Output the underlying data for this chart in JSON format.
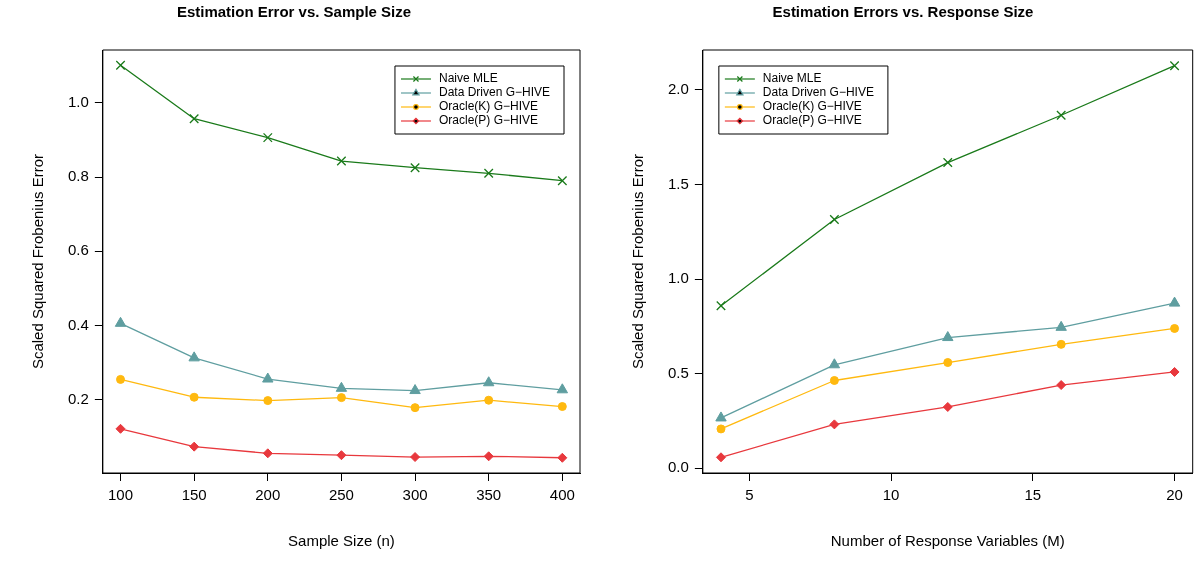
{
  "chart_data": [
    {
      "type": "line",
      "title": "Estimation Error vs. Sample Size",
      "xlabel": "Sample Size (n)",
      "ylabel": "Scaled Squared Frobenius Error",
      "x": [
        100,
        150,
        200,
        250,
        300,
        350,
        400
      ],
      "xlim": [
        88,
        412
      ],
      "xticks": [
        100,
        150,
        200,
        250,
        300,
        350,
        400
      ],
      "ylim": [
        0.003,
        1.142
      ],
      "yticks": [
        0.2,
        0.4,
        0.6,
        0.8,
        {
          "value": 1.0,
          "label": "1.0"
        }
      ],
      "grid": false,
      "legend": "top right",
      "line_style": "solid",
      "series": [
        {
          "name": "Naive MLE",
          "color": "#1a7a1a",
          "marker": "cross",
          "values": [
            1.101,
            0.957,
            0.906,
            0.843,
            0.825,
            0.81,
            0.79
          ]
        },
        {
          "name": "Data Driven G−HIVE",
          "color": "#5f9ea0",
          "marker": "triangle",
          "values": [
            0.406,
            0.313,
            0.256,
            0.231,
            0.225,
            0.246,
            0.227
          ]
        },
        {
          "name": "Oracle(K) G−HIVE",
          "color": "#ffb90f",
          "marker": "circle",
          "values": [
            0.255,
            0.207,
            0.198,
            0.206,
            0.179,
            0.199,
            0.182
          ]
        },
        {
          "name": "Oracle(P) G−HIVE",
          "color": "#e8383d",
          "marker": "diamond",
          "values": [
            0.122,
            0.074,
            0.056,
            0.051,
            0.046,
            0.048,
            0.044
          ]
        }
      ]
    },
    {
      "type": "line",
      "title": "Estimation Errors vs. Response Size",
      "xlabel": "Number of Response Variables (M)",
      "ylabel": "Scaled Squared Frobenius Error",
      "x": [
        4,
        8,
        12,
        16,
        20
      ],
      "xlim": [
        3.36,
        20.64
      ],
      "xticks": [
        5,
        10,
        15,
        20
      ],
      "ylim": [
        -0.025,
        2.211
      ],
      "yticks": [
        {
          "value": 0,
          "label": "0.0"
        },
        0.5,
        {
          "value": 1,
          "label": "1.0"
        },
        1.5,
        {
          "value": 2,
          "label": "2.0"
        }
      ],
      "grid": false,
      "legend": "top left",
      "line_style": "solid",
      "series": [
        {
          "name": "Naive MLE",
          "color": "#1a7a1a",
          "marker": "cross",
          "values": [
            0.859,
            1.315,
            1.616,
            1.866,
            2.128
          ]
        },
        {
          "name": "Data Driven G−HIVE",
          "color": "#5f9ea0",
          "marker": "triangle",
          "values": [
            0.266,
            0.547,
            0.691,
            0.745,
            0.873
          ]
        },
        {
          "name": "Oracle(K) G−HIVE",
          "color": "#ffb90f",
          "marker": "circle",
          "values": [
            0.208,
            0.464,
            0.559,
            0.655,
            0.739
          ]
        },
        {
          "name": "Oracle(P) G−HIVE",
          "color": "#e8383d",
          "marker": "diamond",
          "values": [
            0.058,
            0.232,
            0.324,
            0.44,
            0.509
          ]
        }
      ]
    }
  ]
}
